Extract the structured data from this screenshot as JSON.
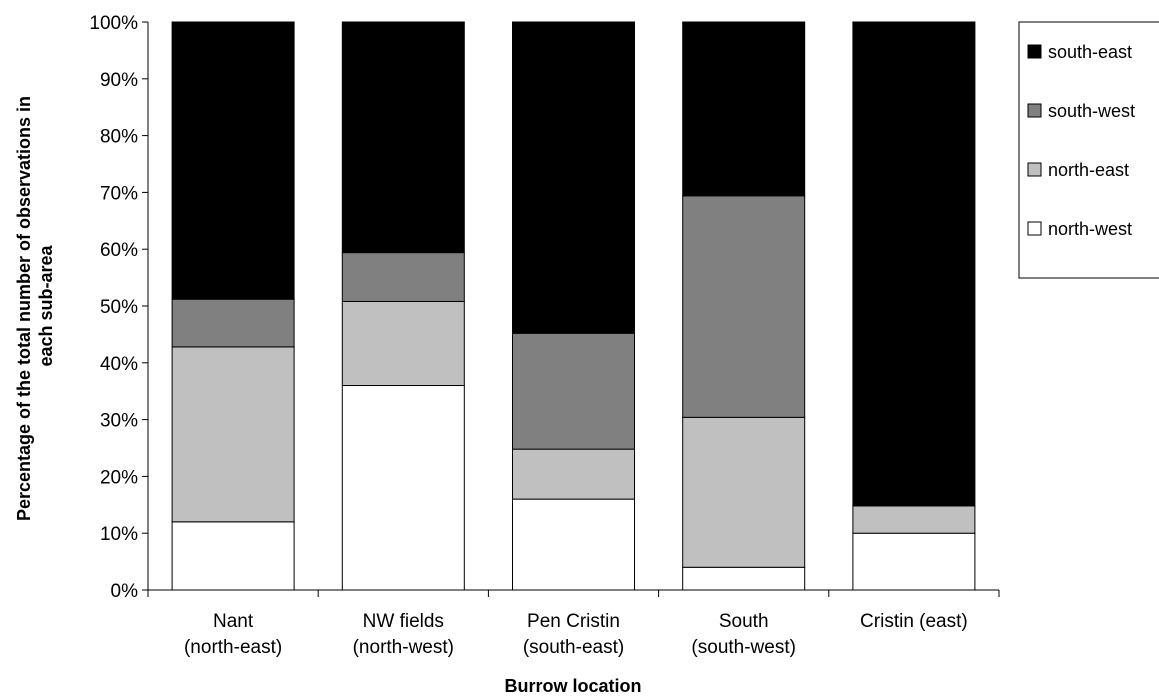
{
  "chart_data": {
    "type": "bar",
    "stacked": true,
    "percent_axis": true,
    "categories": [
      [
        "Nant",
        "(north-east)"
      ],
      [
        "NW fields",
        "(north-west)"
      ],
      [
        "Pen Cristin",
        "(south-east)"
      ],
      [
        "South",
        "(south-west)"
      ],
      [
        "Cristin (east)"
      ]
    ],
    "series": [
      {
        "name": "north-west",
        "color": "#ffffff",
        "values": [
          12,
          36,
          16,
          4,
          10
        ]
      },
      {
        "name": "north-east",
        "color": "#c0c0c0",
        "values": [
          30.8,
          14.8,
          8.8,
          26.4,
          4.8
        ]
      },
      {
        "name": "south-west",
        "color": "#808080",
        "values": [
          8.4,
          8.6,
          20.4,
          39,
          0
        ]
      },
      {
        "name": "south-east",
        "color": "#000000",
        "values": [
          48.8,
          40.6,
          54.8,
          30.6,
          85.2
        ]
      }
    ],
    "legend_order": [
      "south-east",
      "south-west",
      "north-east",
      "north-west"
    ],
    "legend_labels": [
      "south-east",
      "south-west",
      "north-east",
      "north-west"
    ],
    "xlabel": "Burrow location",
    "ylabel_lines": [
      "Percentage of the total number of observations in",
      "each sub-area"
    ],
    "ylim": [
      0,
      100
    ],
    "yticks": [
      "0%",
      "10%",
      "20%",
      "30%",
      "40%",
      "50%",
      "60%",
      "70%",
      "80%",
      "90%",
      "100%"
    ],
    "legend_position": "top-right",
    "grid": false
  }
}
